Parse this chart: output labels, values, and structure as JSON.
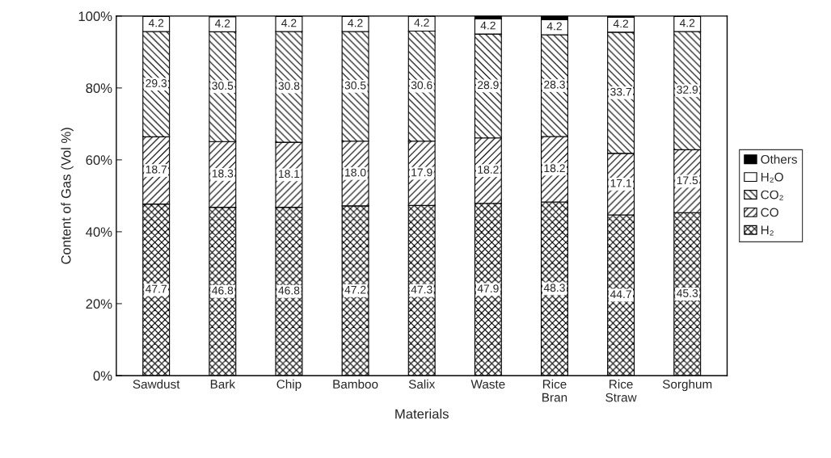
{
  "chart_data": {
    "type": "bar",
    "stacked": true,
    "xlabel": "Materials",
    "ylabel": "Content of Gas (Vol %)",
    "categories": [
      "Sawdust",
      "Bark",
      "Chip",
      "Bamboo",
      "Salix",
      "Waste",
      "Rice\nBran",
      "Rice\nStraw",
      "Sorghum"
    ],
    "series": [
      {
        "name": "H₂",
        "color": "#000000",
        "values": [
          47.7,
          46.8,
          46.8,
          47.2,
          47.3,
          47.9,
          48.3,
          44.7,
          45.3
        ],
        "value_labels": [
          "47.7",
          "46.8",
          "46.8",
          "47.2",
          "47.3",
          "47.9",
          "48.3",
          "44.7",
          "45.3"
        ]
      },
      {
        "name": "CO",
        "color": "#000000",
        "values": [
          18.7,
          18.3,
          18.1,
          18.0,
          17.9,
          18.2,
          18.2,
          17.1,
          17.5
        ],
        "value_labels": [
          "18.7",
          "18.3",
          "18.1",
          "18.0",
          "17.9",
          "18.2",
          "18.2",
          "17.1",
          "17.5"
        ]
      },
      {
        "name": "CO₂",
        "color": "#000000",
        "values": [
          29.3,
          30.5,
          30.8,
          30.5,
          30.6,
          28.9,
          28.3,
          33.7,
          32.9
        ],
        "value_labels": [
          "29.3",
          "30.5",
          "30.8",
          "30.5",
          "30.6",
          "28.9",
          "28.3",
          "33.7",
          "32.9"
        ]
      },
      {
        "name": "H₂O",
        "color": "#ffffff",
        "values": [
          4.2,
          4.2,
          4.2,
          4.2,
          4.2,
          4.2,
          4.2,
          4.2,
          4.2
        ],
        "value_labels": [
          "4.2",
          "4.2",
          "4.2",
          "4.2",
          "4.2",
          "4.2",
          "4.2",
          "4.2",
          "4.2"
        ]
      },
      {
        "name": "Others",
        "color": "#000000",
        "values": [
          null,
          null,
          null,
          null,
          null,
          0.8,
          1.0,
          0.3,
          null
        ]
      }
    ],
    "ylim": [
      0,
      100
    ],
    "yticks": [
      {
        "value": 0,
        "label": "0%"
      },
      {
        "value": 20,
        "label": "20%"
      },
      {
        "value": 40,
        "label": "40%"
      },
      {
        "value": 60,
        "label": "60%"
      },
      {
        "value": 80,
        "label": "80%"
      },
      {
        "value": 100,
        "label": "100%"
      }
    ],
    "legend": "right",
    "grid": false
  }
}
